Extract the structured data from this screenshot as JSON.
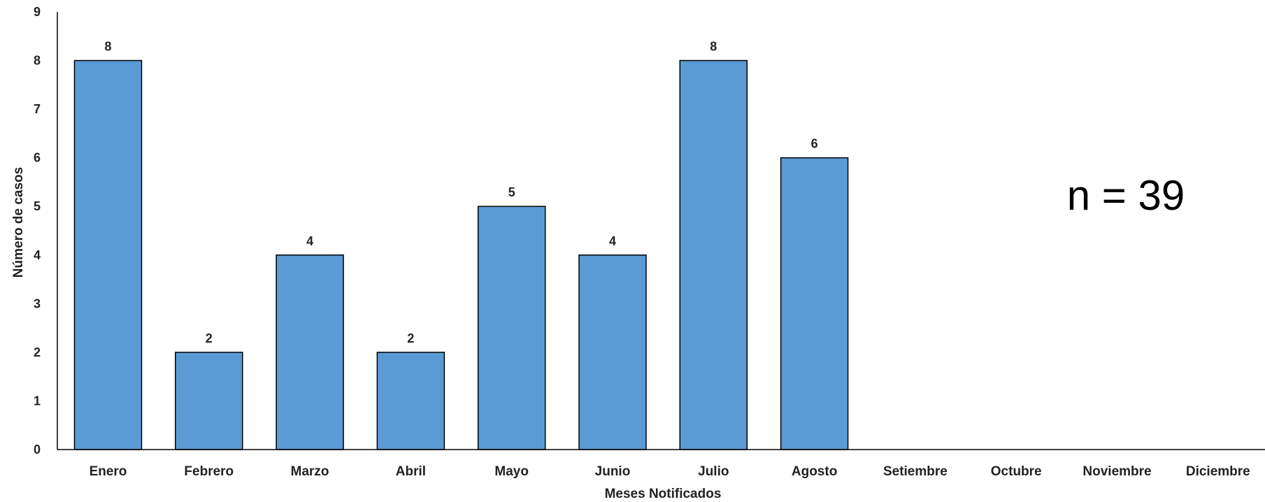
{
  "chart_data": {
    "type": "bar",
    "categories": [
      "Enero",
      "Febrero",
      "Marzo",
      "Abril",
      "Mayo",
      "Junio",
      "Julio",
      "Agosto",
      "Setiembre",
      "Octubre",
      "Noviembre",
      "Diciembre"
    ],
    "values": [
      8,
      2,
      4,
      2,
      5,
      4,
      8,
      6,
      null,
      null,
      null,
      null
    ],
    "title": "",
    "xlabel": "Meses Notificados",
    "ylabel": "Número de casos",
    "ylim": [
      0,
      9
    ],
    "yticks": [
      0,
      1,
      2,
      3,
      4,
      5,
      6,
      7,
      8,
      9
    ],
    "grid": false,
    "data_labels": true,
    "annotation": "n = 39",
    "bar_color": "#5b9bd5",
    "bar_edge_color": "#000000"
  }
}
